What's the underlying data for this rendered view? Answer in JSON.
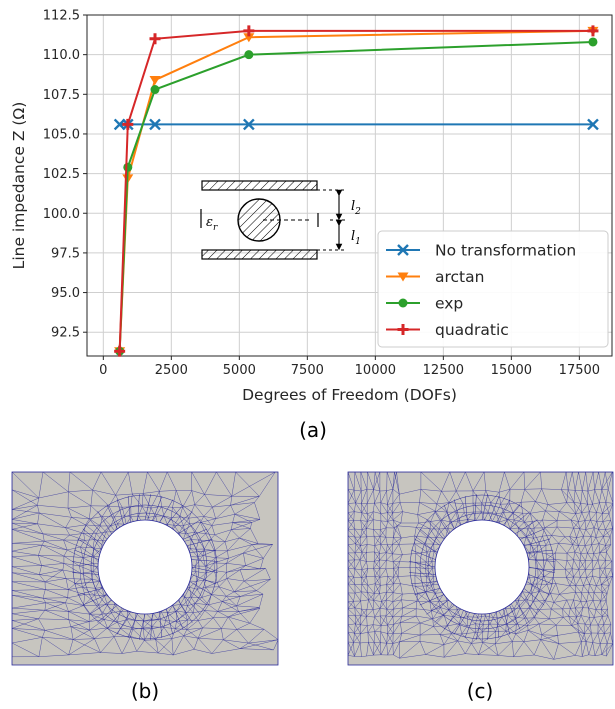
{
  "chart_data": {
    "type": "line",
    "xlabel": "Degrees of Freedom (DOFs)",
    "ylabel": "Line impedance Z (Ω)",
    "xlim": [
      -600,
      18700
    ],
    "ylim": [
      91.0,
      112.5
    ],
    "xticks": [
      0,
      2500,
      5000,
      7500,
      10000,
      12500,
      15000,
      17500
    ],
    "yticks": [
      92.5,
      95.0,
      97.5,
      100.0,
      102.5,
      105.0,
      107.5,
      110.0,
      112.5
    ],
    "xtick_labels": [
      "0",
      "2500",
      "5000",
      "7500",
      "10000",
      "12500",
      "15000",
      "17500"
    ],
    "ytick_labels": [
      "92.5",
      "95.0",
      "97.5",
      "100.0",
      "102.5",
      "105.0",
      "107.5",
      "110.0",
      "112.5"
    ],
    "grid": true,
    "legend_position": "lower-right",
    "series": [
      {
        "name": "No transformation",
        "color": "#1f77b4",
        "marker": "x",
        "x": [
          600,
          900,
          1900,
          5350,
          18000
        ],
        "y": [
          105.6,
          105.6,
          105.6,
          105.6,
          105.6
        ]
      },
      {
        "name": "arctan",
        "color": "#ff7f0e",
        "marker": "triangle-down",
        "x": [
          600,
          900,
          1900,
          5350,
          18000
        ],
        "y": [
          91.3,
          102.2,
          108.4,
          111.1,
          111.5
        ]
      },
      {
        "name": "exp",
        "color": "#2ca02c",
        "marker": "circle",
        "x": [
          600,
          900,
          1900,
          5350,
          18000
        ],
        "y": [
          91.3,
          102.9,
          107.8,
          110.0,
          110.8
        ]
      },
      {
        "name": "quadratic",
        "color": "#d62728",
        "marker": "plus",
        "x": [
          600,
          900,
          1900,
          5350,
          18000
        ],
        "y": [
          91.3,
          105.6,
          111.0,
          111.5,
          111.5
        ]
      }
    ]
  },
  "inset": {
    "epsilon_label": "ε",
    "epsilon_sub": "r",
    "l2_label": "l",
    "l2_sub": "2",
    "l1_label": "l",
    "l1_sub": "1"
  },
  "captions": {
    "a": "(a)",
    "b": "(b)",
    "c": "(c)"
  },
  "mesh": {
    "fill_color": "#c7c5bf",
    "edge_color": "#2a2a9a"
  }
}
